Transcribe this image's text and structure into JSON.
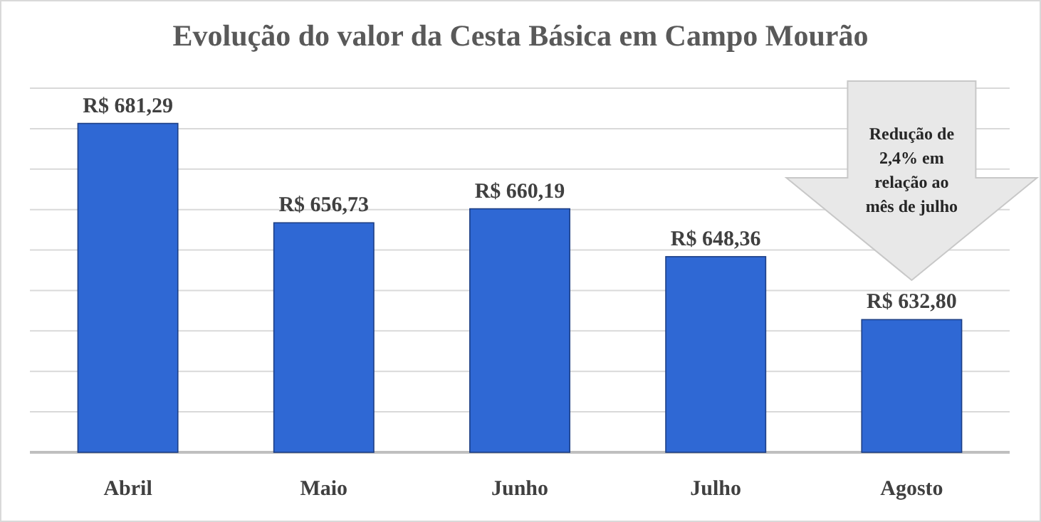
{
  "chart_data": {
    "type": "bar",
    "title": "Evolução do valor da Cesta Básica em Campo Mourão",
    "categories": [
      "Abril",
      "Maio",
      "Junho",
      "Julho",
      "Agosto"
    ],
    "values": [
      681.29,
      656.73,
      660.19,
      648.36,
      632.8
    ],
    "value_labels": [
      "R$ 681,29",
      "R$ 656,73",
      "R$ 660,19",
      "R$ 648,36",
      "R$ 632,80"
    ],
    "color": "#2f68d4",
    "ylim": [
      600,
      690
    ],
    "yticks": [
      {
        "value": 600,
        "label": null
      },
      {
        "value": 610,
        "label": null
      },
      {
        "value": 620,
        "label": null
      },
      {
        "value": 630,
        "label": null
      },
      {
        "value": 640,
        "label": null
      },
      {
        "value": 650,
        "label": null
      },
      {
        "value": 660,
        "label": null
      },
      {
        "value": 670,
        "label": null
      },
      {
        "value": 680,
        "label": null
      },
      {
        "value": 690,
        "label": null
      }
    ],
    "grid": "y",
    "tick_labels": "x",
    "annotations": [
      "Redução de 2,4% em relação ao mês de julho"
    ]
  }
}
